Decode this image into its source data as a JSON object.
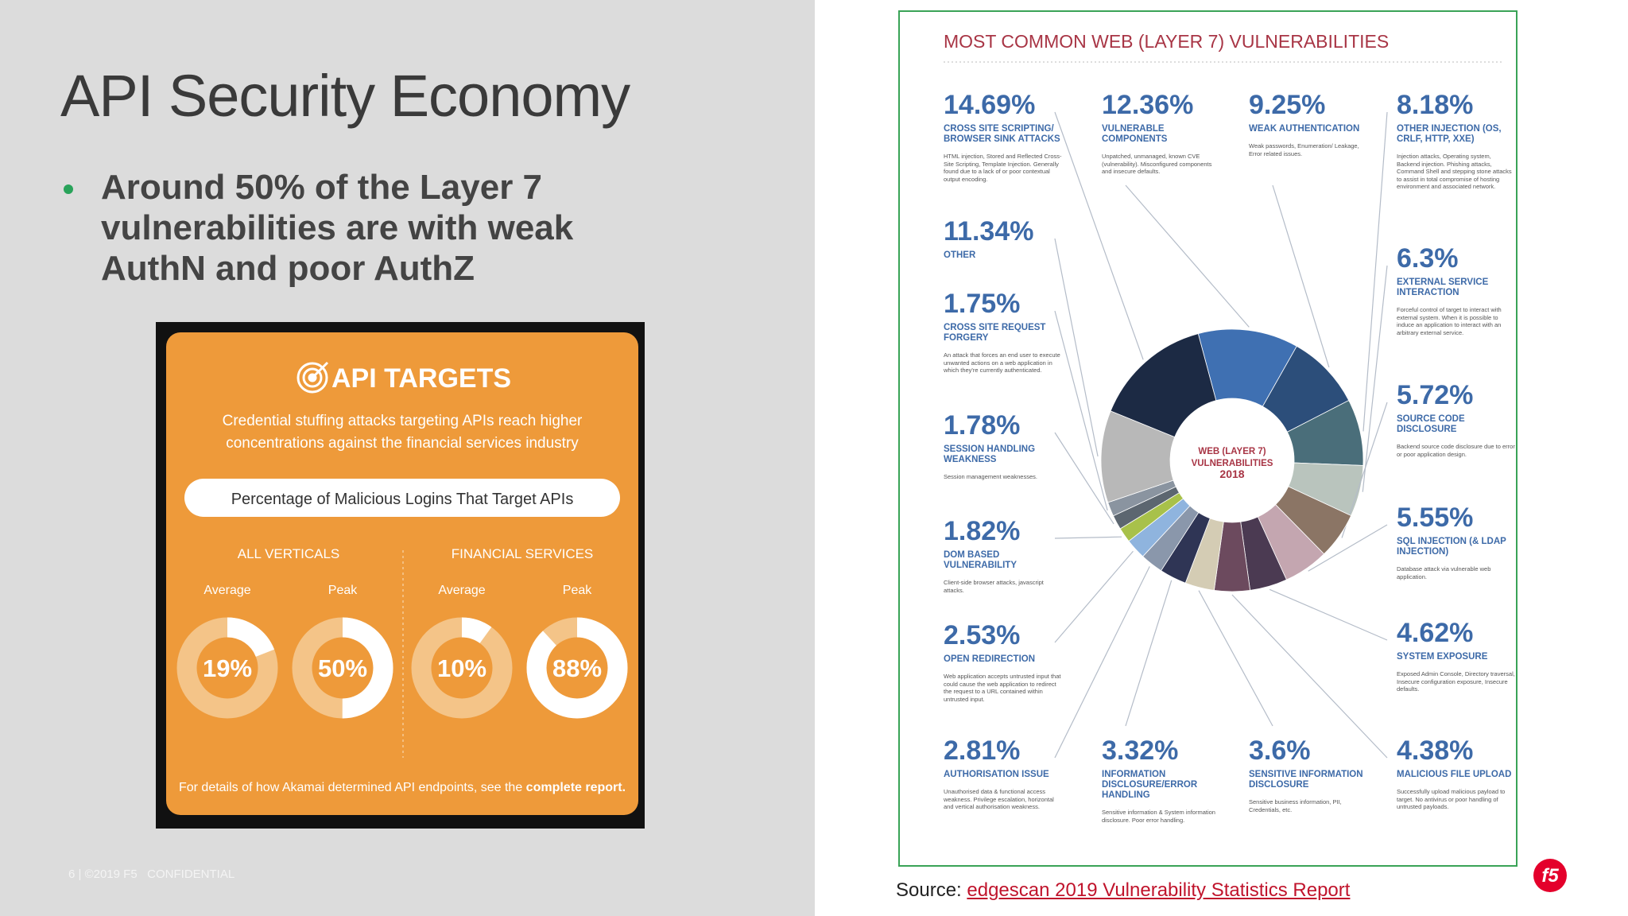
{
  "slide": {
    "title": "API Security Economy",
    "bullets": [
      "Around 50% of the Layer 7 vulnerabilities are with weak AuthN and poor AuthZ"
    ],
    "footer": "6 | ©2019 F5   CONFIDENTIAL",
    "source_label": "Source:",
    "source_link": "edgescan 2019 Vulnerability Statistics Report",
    "logo": "f5"
  },
  "api_targets": {
    "title": "API TARGETS",
    "subtitle": [
      "Credential stuffing attacks targeting APIs reach higher",
      "concentrations against the financial services industry"
    ],
    "chart_title": "Percentage of Malicious Logins That Target APIs",
    "groups": [
      {
        "name": "ALL VERTICALS",
        "items": [
          {
            "label": "Average",
            "value": 19,
            "value_label": "19%"
          },
          {
            "label": "Peak",
            "value": 50,
            "value_label": "50%"
          }
        ]
      },
      {
        "name": "FINANCIAL SERVICES",
        "items": [
          {
            "label": "Average",
            "value": 10,
            "value_label": "10%"
          },
          {
            "label": "Peak",
            "value": 88,
            "value_label": "88%"
          }
        ]
      }
    ],
    "footnote": "For details of how Akamai determined API endpoints, see the",
    "footnote_link": "complete report."
  },
  "vulnerabilities": {
    "title": "MOST COMMON WEB (LAYER 7) VULNERABILITIES",
    "center_label": [
      "WEB (LAYER 7)",
      "VULNERABILITIES",
      "2018"
    ],
    "items": [
      {
        "value": 12.36,
        "value_label": "12.36%",
        "name": "VULNERABLE COMPONENTS",
        "description": "Unpatched, unmanaged, known CVE (vulnerability). Misconfigured components and insecure defaults.",
        "color": "#3f70b2"
      },
      {
        "value": 9.25,
        "value_label": "9.25%",
        "name": "WEAK AUTHENTICATION",
        "description": "Weak passwords, Enumeration/ Leakage, Error related issues.",
        "color": "#2c4e7a"
      },
      {
        "value": 8.18,
        "value_label": "8.18%",
        "name": "OTHER INJECTION (OS, CRLF, HTTP, XXE)",
        "description": "Injection attacks, Operating system, Backend injection. Phishing attacks, Command Shell and stepping stone attacks to assist in total compromise of hosting environment and associated network.",
        "color": "#4a6e7a"
      },
      {
        "value": 6.3,
        "value_label": "6.3%",
        "name": "EXTERNAL SERVICE INTERACTION",
        "description": "Forceful control of target to interact with external system. When it is possible to induce an application to interact with an arbitrary external service.",
        "color": "#b9c4bd"
      },
      {
        "value": 5.72,
        "value_label": "5.72%",
        "name": "SOURCE CODE DISCLOSURE",
        "description": "Backend source code disclosure due to error or poor application design.",
        "color": "#8b7565"
      },
      {
        "value": 5.55,
        "value_label": "5.55%",
        "name": "SQL INJECTION (& LDAP INJECTION)",
        "description": "Database attack via vulnerable web application.",
        "color": "#c4a6b0"
      },
      {
        "value": 4.62,
        "value_label": "4.62%",
        "name": "SYSTEM EXPOSURE",
        "description": "Exposed Admin Console, Directory traversal, Insecure configuration exposure, Insecure defaults.",
        "color": "#4b3a52"
      },
      {
        "value": 4.38,
        "value_label": "4.38%",
        "name": "MALICIOUS FILE UPLOAD",
        "description": "Successfully upload malicious payload to target. No antivirus or poor handling of untrusted payloads.",
        "color": "#6c4a5e"
      },
      {
        "value": 3.6,
        "value_label": "3.6%",
        "name": "SENSITIVE INFORMATION DISCLOSURE",
        "description": "Sensitive business information, PII, Credentials, etc.",
        "color": "#d4ccb4"
      },
      {
        "value": 3.32,
        "value_label": "3.32%",
        "name": "INFORMATION DISCLOSURE/ERROR HANDLING",
        "description": "Sensitive information & System information disclosure. Poor error handling.",
        "color": "#2f3555"
      },
      {
        "value": 2.81,
        "value_label": "2.81%",
        "name": "AUTHORISATION ISSUE",
        "description": "Unauthorised data & functional access weakness. Privilege escalation, horizontal and vertical authorisation weakness.",
        "color": "#8a97ab"
      },
      {
        "value": 2.53,
        "value_label": "2.53%",
        "name": "OPEN REDIRECTION",
        "description": "Web application accepts untrusted input that could cause the web application to redirect the request to a URL contained within untrusted input.",
        "color": "#8fb4de"
      },
      {
        "value": 1.82,
        "value_label": "1.82%",
        "name": "DOM BASED VULNERABILITY",
        "description": "Client-side browser attacks, javascript attacks.",
        "color": "#a8c14a"
      },
      {
        "value": 1.78,
        "value_label": "1.78%",
        "name": "SESSION HANDLING WEAKNESS",
        "description": "Session management weaknesses.",
        "color": "#5c6670"
      },
      {
        "value": 1.75,
        "value_label": "1.75%",
        "name": "CROSS SITE REQUEST FORGERY",
        "description": "An attack that forces an end user to execute unwanted actions on a web application in which they're currently authenticated.",
        "color": "#8a94a0"
      },
      {
        "value": 11.34,
        "value_label": "11.34%",
        "name": "OTHER",
        "color": "#b8b8b8"
      },
      {
        "value": 14.69,
        "value_label": "14.69%",
        "name": "CROSS SITE SCRIPTING/ BROWSER SINK ATTACKS",
        "description": "HTML injection, Stored and Reflected Cross-Site Scripting, Template Injection. Generally found due to a lack of or poor contextual output encoding.",
        "color": "#1c2a44"
      }
    ]
  }
}
